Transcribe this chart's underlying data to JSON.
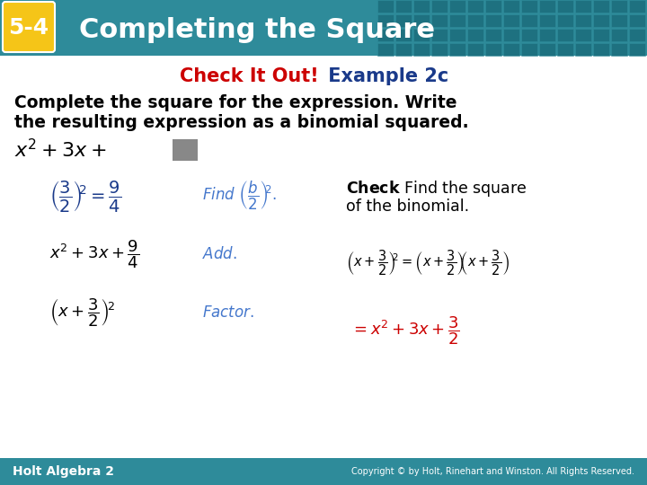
{
  "bg_color": "#ffffff",
  "header_bg": "#2e8b9a",
  "header_tile_color": "#1a6b7a",
  "badge_bg": "#f5c518",
  "badge_text": "5-4",
  "badge_text_color": "#ffffff",
  "header_title": "Completing the Square",
  "header_title_color": "#ffffff",
  "subtitle_red": "Check It Out!",
  "subtitle_blue": " Example 2c",
  "subtitle_red_color": "#cc0000",
  "subtitle_blue_color": "#1a3a8a",
  "body_text_color": "#000000",
  "blue_color": "#1a3a8a",
  "red_color": "#cc0000",
  "italic_blue_color": "#4477cc",
  "footer_text": "Holt Algebra 2",
  "footer_right": "Copyright © by Holt, Rinehart and Winston. All Rights Reserved.",
  "footer_bg": "#2e8b9a",
  "footer_text_color": "#ffffff",
  "square_color": "#888888"
}
